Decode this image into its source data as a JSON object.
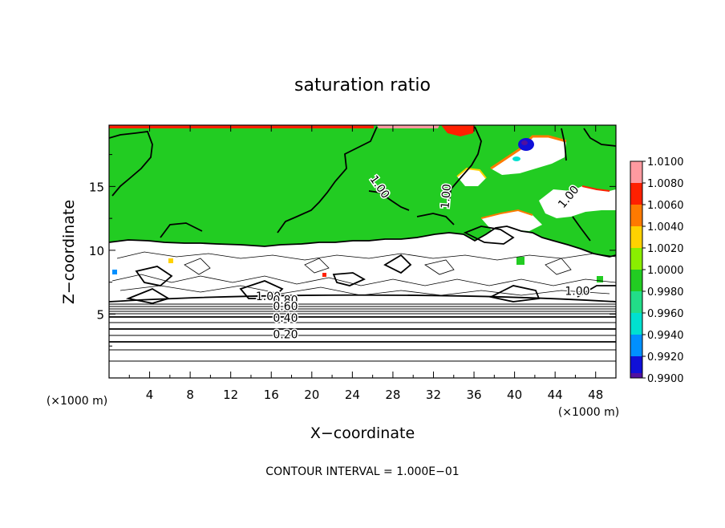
{
  "chart_data": {
    "type": "heatmap",
    "title": "saturation ratio",
    "xlabel": "X−coordinate",
    "ylabel": "Z−coordinate",
    "x_unit": "(×1000 m)",
    "z_unit": "(×1000 m)",
    "xlim": [
      0,
      50
    ],
    "ylim": [
      0,
      19.8
    ],
    "x_ticks": [
      "4",
      "8",
      "12",
      "16",
      "20",
      "24",
      "28",
      "32",
      "36",
      "40",
      "44",
      "48"
    ],
    "y_ticks": [
      "5",
      "10",
      "15"
    ],
    "footer": "CONTOUR INTERVAL = 1.000E−01",
    "colorbar": {
      "labels": [
        "1.0100",
        "1.0080",
        "1.0060",
        "1.0040",
        "1.0020",
        "1.0000",
        "0.9980",
        "0.9960",
        "0.9940",
        "0.9920",
        "0.9900"
      ],
      "colors": [
        "#ff9aa0",
        "#ff2000",
        "#ff7a00",
        "#ffd200",
        "#8aee00",
        "#22cc22",
        "#22dd88",
        "#00e0d0",
        "#0090ff",
        "#1010d8",
        "#5010a0"
      ]
    },
    "contour_labels": [
      {
        "text": "1.00",
        "x": 26.4,
        "z": 14.8,
        "angle": 55
      },
      {
        "text": "1.00",
        "x": 33.6,
        "z": 14.2,
        "angle": -85
      },
      {
        "text": "1.00",
        "x": 45.6,
        "z": 14.0,
        "angle": -50
      },
      {
        "text": "1.00",
        "x": 46.2,
        "z": 6.5,
        "angle": 0
      },
      {
        "text": "1.00",
        "x": 15.7,
        "z": 6.1,
        "angle": 0
      },
      {
        "text": "0.80",
        "x": 17.4,
        "z": 5.8,
        "angle": 0
      },
      {
        "text": "0.60",
        "x": 17.4,
        "z": 5.3,
        "angle": 0
      },
      {
        "text": "0.40",
        "x": 17.4,
        "z": 4.4,
        "angle": 0
      },
      {
        "text": "0.20",
        "x": 17.4,
        "z": 3.1,
        "angle": 0
      }
    ]
  }
}
